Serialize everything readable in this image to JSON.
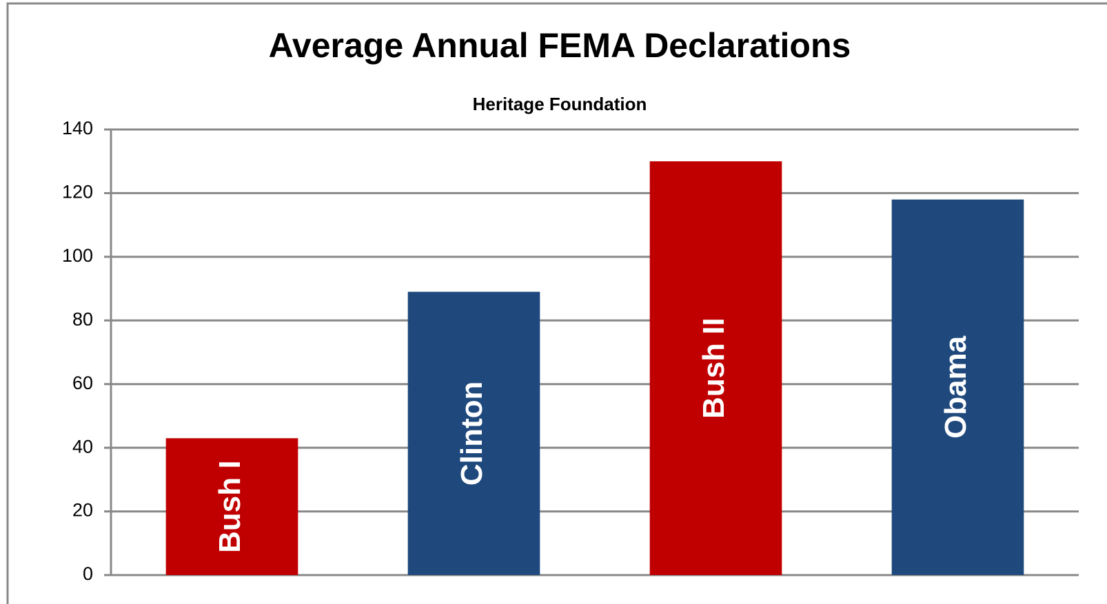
{
  "chart_data": {
    "type": "bar",
    "title": "Average Annual FEMA Declarations",
    "subtitle": "Heritage Foundation",
    "categories": [
      "Bush I",
      "Clinton",
      "Bush II",
      "Obama"
    ],
    "values": [
      43,
      89,
      130,
      118
    ],
    "colors": [
      "#c00000",
      "#1f497d",
      "#c00000",
      "#1f497d"
    ],
    "ylim": [
      0,
      140
    ],
    "yticks": [
      0,
      20,
      40,
      60,
      80,
      100,
      120,
      140
    ],
    "grid": true
  }
}
